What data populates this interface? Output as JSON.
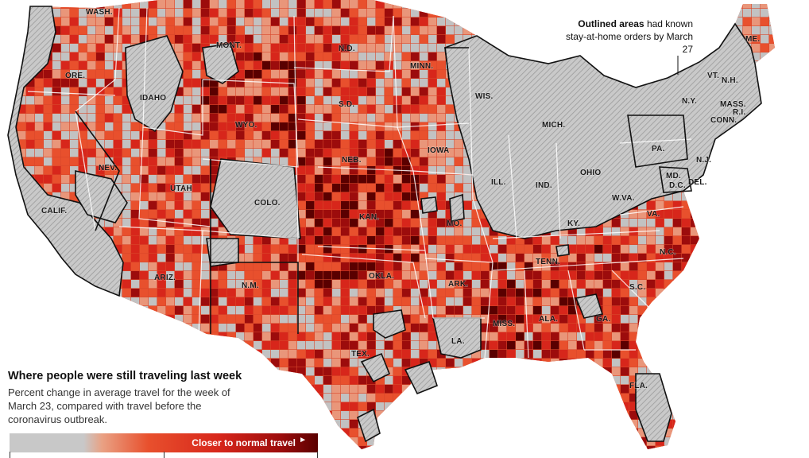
{
  "map": {
    "title": "Where people were still traveling last week",
    "subtitle": "Percent change in average travel for the week of March 23, compared with travel before the coronavirus outbreak.",
    "annotation_bold": "Outlined areas",
    "annotation_rest": " had known stay-at-home orders by March 27",
    "legend": {
      "end_label": "Closer to normal travel",
      "arrow_icon": "right-arrow-icon",
      "colors": [
        "#c8c8c8",
        "#e9a184",
        "#e8502d",
        "#d7261b",
        "#9c0c0c",
        "#5a0000"
      ]
    },
    "colors": {
      "no_data_gray": "#c2c2c2",
      "hatch_gray": "#b5b5b5",
      "light": "#e9967a",
      "orange": "#e8502d",
      "red": "#d7261b",
      "dark_red": "#9c0c0c",
      "darkest": "#5a0000"
    },
    "states": [
      {
        "abbr": "WASH."
      },
      {
        "abbr": "ORE."
      },
      {
        "abbr": "CALIF."
      },
      {
        "abbr": "IDAHO"
      },
      {
        "abbr": "NEV."
      },
      {
        "abbr": "MONT."
      },
      {
        "abbr": "WYO."
      },
      {
        "abbr": "UTAH"
      },
      {
        "abbr": "ARIZ."
      },
      {
        "abbr": "COLO."
      },
      {
        "abbr": "N.M."
      },
      {
        "abbr": "N.D."
      },
      {
        "abbr": "S.D."
      },
      {
        "abbr": "NEB."
      },
      {
        "abbr": "KAN."
      },
      {
        "abbr": "OKLA."
      },
      {
        "abbr": "TEX."
      },
      {
        "abbr": "MINN."
      },
      {
        "abbr": "IOWA"
      },
      {
        "abbr": "MO."
      },
      {
        "abbr": "ARK."
      },
      {
        "abbr": "LA."
      },
      {
        "abbr": "WIS."
      },
      {
        "abbr": "ILL."
      },
      {
        "abbr": "MICH."
      },
      {
        "abbr": "IND."
      },
      {
        "abbr": "OHIO"
      },
      {
        "abbr": "KY."
      },
      {
        "abbr": "TENN."
      },
      {
        "abbr": "MISS."
      },
      {
        "abbr": "ALA."
      },
      {
        "abbr": "GA."
      },
      {
        "abbr": "FLA."
      },
      {
        "abbr": "S.C."
      },
      {
        "abbr": "N.C."
      },
      {
        "abbr": "VA."
      },
      {
        "abbr": "W.VA."
      },
      {
        "abbr": "PA."
      },
      {
        "abbr": "N.Y."
      },
      {
        "abbr": "VT."
      },
      {
        "abbr": "N.H."
      },
      {
        "abbr": "ME."
      },
      {
        "abbr": "MASS."
      },
      {
        "abbr": "CONN."
      },
      {
        "abbr": "R.I."
      },
      {
        "abbr": "N.J."
      },
      {
        "abbr": "DEL."
      },
      {
        "abbr": "MD."
      },
      {
        "abbr": "D.C."
      }
    ]
  }
}
